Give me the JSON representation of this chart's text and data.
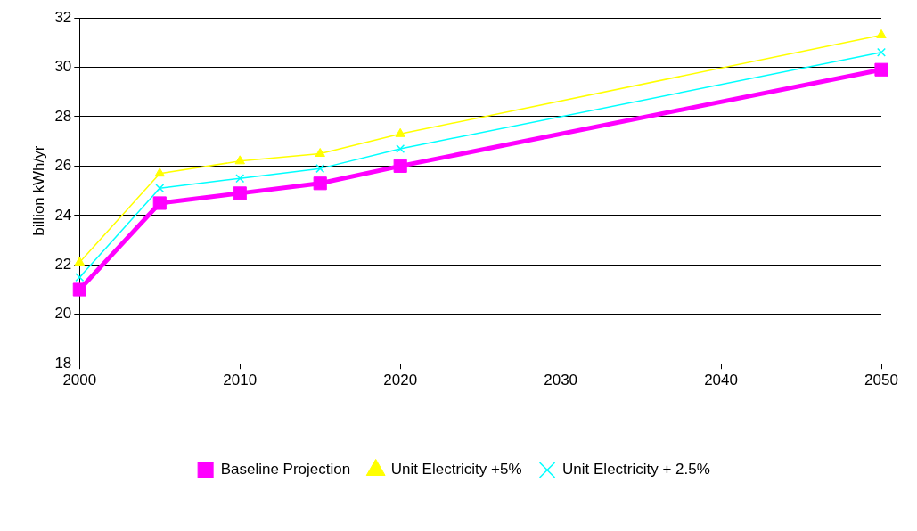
{
  "chart_data": {
    "type": "line",
    "ylabel": "billion kWh/yr",
    "x": [
      2000,
      2005,
      2010,
      2015,
      2020,
      2050
    ],
    "xlim": [
      2000,
      2050
    ],
    "xticks": [
      2000,
      2010,
      2020,
      2030,
      2040,
      2050
    ],
    "ylim": [
      18,
      32
    ],
    "yticks": [
      18,
      20,
      22,
      24,
      26,
      28,
      30,
      32
    ],
    "grid": "y",
    "legend": "bottom",
    "series": [
      {
        "name": "Baseline Projection",
        "color": "#ff00ff",
        "marker": "square",
        "values": [
          21.0,
          24.5,
          24.9,
          25.3,
          26.0,
          29.9
        ]
      },
      {
        "name": "Unit Electricity +5%",
        "color": "#ffff00",
        "marker": "triangle",
        "values": [
          22.1,
          25.7,
          26.2,
          26.5,
          27.3,
          31.3
        ]
      },
      {
        "name": "Unit Electricity + 2.5%",
        "color": "#00ffff",
        "marker": "cross",
        "values": [
          21.5,
          25.1,
          25.5,
          25.9,
          26.7,
          30.6
        ]
      }
    ]
  }
}
